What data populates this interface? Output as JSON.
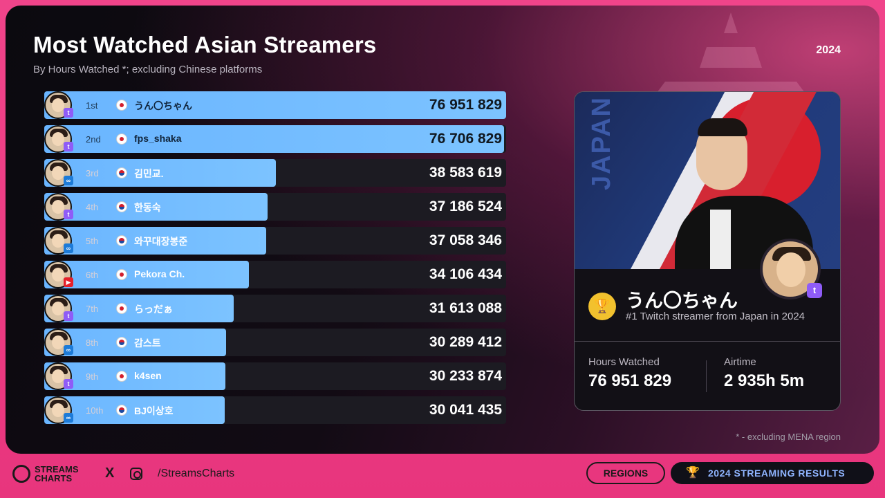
{
  "header": {
    "title": "Most Watched Asian Streamers",
    "subtitle": "By Hours Watched *; excluding Chinese platforms",
    "year": "2024"
  },
  "chart_data": {
    "type": "bar",
    "orientation": "horizontal",
    "title": "Most Watched Asian Streamers",
    "subtitle": "By Hours Watched *; excluding Chinese platforms",
    "categories": [
      "うん〇ちゃん",
      "fps_shaka",
      "김민교.",
      "한동숙",
      "와꾸대장봉준",
      "Pekora Ch.",
      "らっだぁ",
      "감스트",
      "k4sen",
      "BJ이상호"
    ],
    "ranks": [
      "1st",
      "2nd",
      "3rd",
      "4th",
      "5th",
      "6th",
      "7th",
      "8th",
      "9th",
      "10th"
    ],
    "countries": [
      "jp",
      "jp",
      "kr",
      "kr",
      "kr",
      "jp",
      "jp",
      "kr",
      "jp",
      "kr"
    ],
    "platforms": [
      "twitch",
      "twitch",
      "soop",
      "twitch",
      "soop",
      "youtube",
      "twitch",
      "soop",
      "twitch",
      "soop"
    ],
    "values": [
      76951829,
      76706829,
      38583619,
      37186524,
      37058346,
      34106434,
      31613088,
      30289412,
      30233874,
      30041435
    ],
    "value_labels": [
      "76 951 829",
      "76 706 829",
      "38 583 619",
      "37 186 524",
      "37 058 346",
      "34 106 434",
      "31 613 088",
      "30 289 412",
      "30 233 874",
      "30 041 435"
    ],
    "xlim": [
      0,
      77000000
    ],
    "grid": false
  },
  "card": {
    "country_label": "JAPAN",
    "name": "うん〇ちゃん",
    "tagline": "#1 Twitch streamer from Japan in 2024",
    "hours_label": "Hours Watched",
    "hours_value": "76 951 829",
    "airtime_label": "Airtime",
    "airtime_value": "2 935h 5m"
  },
  "footnote": "* - excluding MENA region",
  "footer": {
    "logo_line1": "STREAMS",
    "logo_line2": "CHARTS",
    "x_icon": "X",
    "handle": "/StreamsCharts",
    "regions_button": "REGIONS",
    "results_button": "2024 STREAMING RESULTS"
  },
  "colors": {
    "bar_fill": "#6ab5ff",
    "bar_track": "#1c1b22",
    "accent_pink": "#ef3f85",
    "twitch": "#8f5cf7",
    "youtube": "#e5202a",
    "soop": "#1d7bd8"
  }
}
